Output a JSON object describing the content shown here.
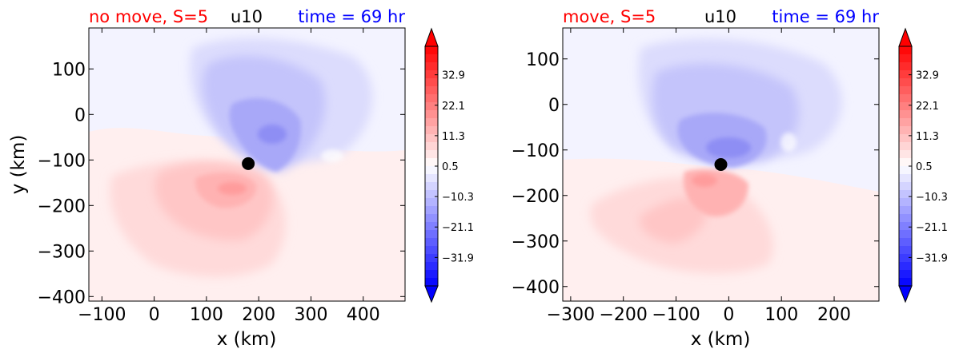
{
  "chart_data": [
    {
      "type": "heatmap",
      "title_left": "no move, S=5",
      "title_center": "u10",
      "title_right": "time = 69 hr",
      "xlabel": "x (km)",
      "ylabel": "y (km)",
      "xlim": [
        -125,
        480
      ],
      "ylim": [
        -410,
        190
      ],
      "xticks": [
        -100,
        0,
        100,
        200,
        300,
        400
      ],
      "xtick_labels": [
        "−100",
        "0",
        "100",
        "200",
        "300",
        "400"
      ],
      "yticks": [
        100,
        0,
        -100,
        -200,
        -300,
        -400
      ],
      "ytick_labels": [
        "100",
        "0",
        "−100",
        "−200",
        "−300",
        "−400"
      ],
      "center_marker": {
        "x": 180,
        "y": -108
      },
      "colorbar": {
        "range": [
          -42,
          43
        ],
        "ticks": [
          32.9,
          22.1,
          11.3,
          0.5,
          -10.3,
          -21.1,
          -31.9
        ],
        "tick_labels": [
          "32.9",
          "22.1",
          "11.3",
          "0.5",
          "−10.3",
          "−21.1",
          "−31.9"
        ],
        "extend": "both"
      }
    },
    {
      "type": "heatmap",
      "title_left": "move, S=5",
      "title_center": "u10",
      "title_right": "time = 69 hr",
      "xlabel": "x (km)",
      "ylabel": "",
      "xlim": [
        -315,
        285
      ],
      "ylim": [
        -432,
        168
      ],
      "xticks": [
        -300,
        -200,
        -100,
        0,
        100,
        200
      ],
      "xtick_labels": [
        "−300",
        "−200",
        "−100",
        "0",
        "100",
        "200"
      ],
      "yticks": [
        100,
        0,
        -100,
        -200,
        -300,
        -400
      ],
      "ytick_labels": [
        "100",
        "0",
        "−100",
        "−200",
        "−300",
        "−400"
      ],
      "center_marker": {
        "x": -15,
        "y": -132
      },
      "colorbar": {
        "range": [
          -42,
          43
        ],
        "ticks": [
          32.9,
          22.1,
          11.3,
          0.5,
          -10.3,
          -21.1,
          -31.9
        ],
        "tick_labels": [
          "32.9",
          "22.1",
          "11.3",
          "0.5",
          "−10.3",
          "−21.1",
          "−31.9"
        ],
        "extend": "both"
      }
    }
  ],
  "colors": {
    "title_left": "#ff0000",
    "title_center": "#000000",
    "title_right": "#0000ff",
    "marker": "#000000"
  }
}
